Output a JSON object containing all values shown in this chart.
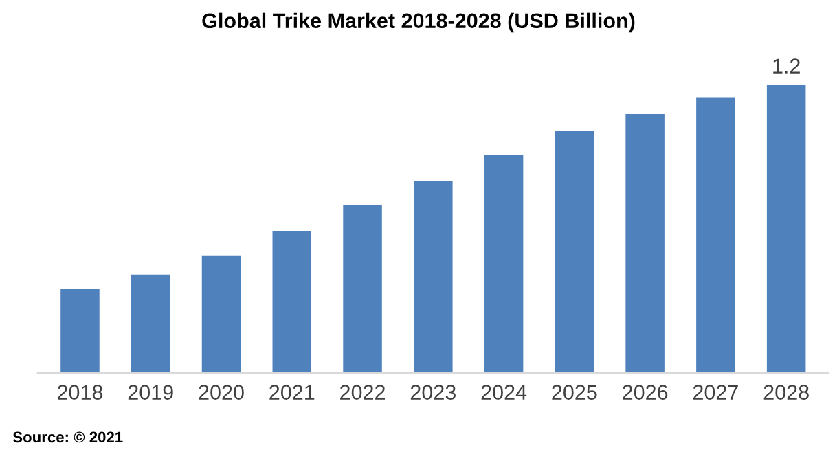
{
  "chart_data": {
    "type": "bar",
    "title": "Global Trike Market 2018-2028 (USD Billion)",
    "categories": [
      "2018",
      "2019",
      "2020",
      "2021",
      "2022",
      "2023",
      "2024",
      "2025",
      "2026",
      "2027",
      "2028"
    ],
    "values": [
      0.35,
      0.41,
      0.49,
      0.59,
      0.7,
      0.8,
      0.91,
      1.01,
      1.08,
      1.15,
      1.2
    ],
    "value_labels": [
      null,
      null,
      null,
      null,
      null,
      null,
      null,
      null,
      null,
      null,
      "1.2"
    ],
    "color": "#4f81bd",
    "grid": false,
    "legend": false,
    "annotations": [
      "Source: © 2021"
    ]
  }
}
